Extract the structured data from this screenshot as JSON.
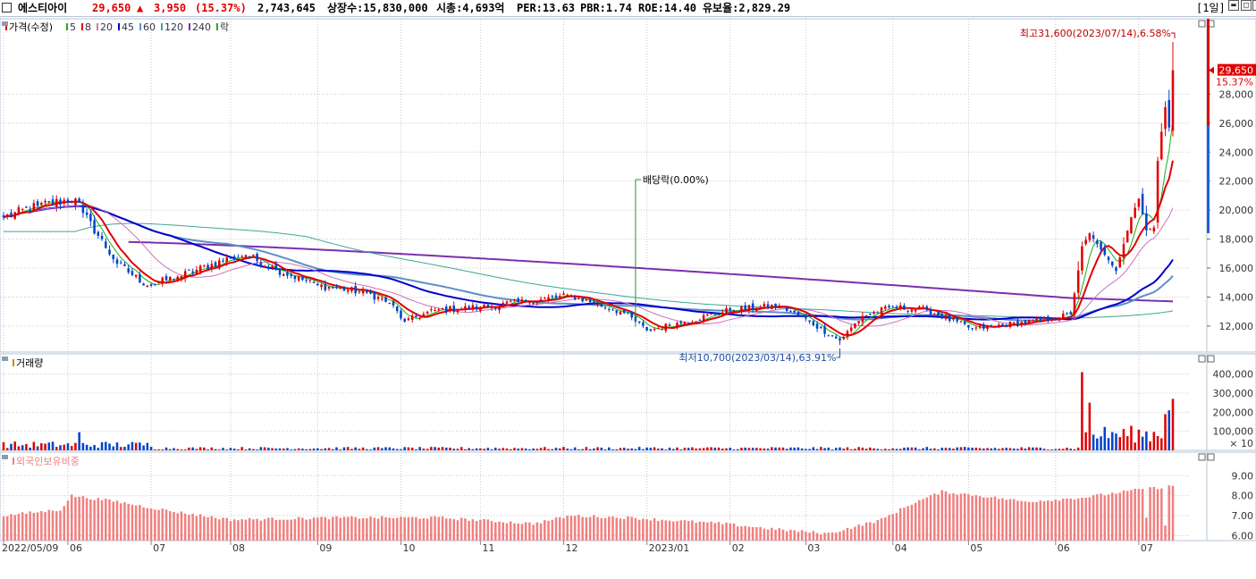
{
  "header": {
    "stock_name": "에스티아이",
    "price": "29,650",
    "change_arrow": "▲",
    "change": "3,950",
    "change_pct": "(15.37%)",
    "volume": "2,743,645",
    "listed_shares": "상장수:15,830,000",
    "market_cap": "시총:4,693억",
    "per": "PER:13.63",
    "pbr": "PBR:1.74",
    "roe": "ROE:14.40",
    "float": "유보율:2,829.29",
    "period": "[1일]",
    "minimize_icon": "minimize-icon",
    "maximize_icon": "maximize-icon",
    "close_icon": "close-icon"
  },
  "colors": {
    "up": "#e00000",
    "down": "#0044cc",
    "ma5": "#18b018",
    "ma8": "#e00000",
    "ma20": "#d070c0",
    "ma45": "#0000cc",
    "ma60": "#5d8fc8",
    "ma120": "#3fa59b",
    "ma240": "#7b2fb0",
    "foreign": "#f08080",
    "grid": "#c8c8c8",
    "axis_text": "#333333"
  },
  "price_panel": {
    "legend": [
      {
        "text": "가격(수정)",
        "color": "#e00000"
      },
      {
        "text": "5",
        "color": "#18b018"
      },
      {
        "text": "8",
        "color": "#e00000"
      },
      {
        "text": "20",
        "color": "#d070c0"
      },
      {
        "text": "45",
        "color": "#0000cc"
      },
      {
        "text": "60",
        "color": "#5d8fc8"
      },
      {
        "text": "120",
        "color": "#3fa59b"
      },
      {
        "text": "240",
        "color": "#7b2fb0"
      },
      {
        "text": "락",
        "color": "#18b018"
      }
    ],
    "y_ticks": [
      "12,000",
      "14,000",
      "16,000",
      "18,000",
      "20,000",
      "22,000",
      "24,000",
      "26,000",
      "28,000"
    ],
    "current_price_label": "29,650",
    "current_pct_label": "15.37%",
    "high_annotation": "최고31,600(2023/07/14),6.58%",
    "low_annotation": "최저10,700(2023/03/14),63.91%",
    "dividend_annotation": "배당락(0.00%)"
  },
  "volume_panel": {
    "legend": "거래량",
    "y_ticks": [
      "400,000",
      "300,000",
      "200,000",
      "100,000"
    ],
    "unit": "× 10"
  },
  "foreign_panel": {
    "legend": "외국인보유비중",
    "y_ticks": [
      "9.00",
      "8.00",
      "7.00",
      "6.00"
    ]
  },
  "x_axis": {
    "labels": [
      "2022/05/09",
      "06",
      "07",
      "08",
      "09",
      "10",
      "11",
      "12",
      "2023/01",
      "02",
      "03",
      "04",
      "05",
      "06",
      "07"
    ]
  },
  "chart_data": {
    "type": "candlestick",
    "x": [
      "2022-05-09",
      "2022-06",
      "2022-07",
      "2022-08",
      "2022-09",
      "2022-10",
      "2022-11",
      "2022-12",
      "2023-01",
      "2023-02",
      "2023-03",
      "2023-04",
      "2023-05",
      "2023-06",
      "2023-07"
    ],
    "close_anchors": [
      {
        "t": "2022-05-09",
        "v": 19500
      },
      {
        "t": "2022-05-20",
        "v": 20300
      },
      {
        "t": "2022-06-03",
        "v": 20800
      },
      {
        "t": "2022-06-07",
        "v": 19800
      },
      {
        "t": "2022-06-20",
        "v": 16300
      },
      {
        "t": "2022-06-30",
        "v": 14800
      },
      {
        "t": "2022-07-12",
        "v": 15400
      },
      {
        "t": "2022-08-01",
        "v": 16700
      },
      {
        "t": "2022-08-05",
        "v": 16900
      },
      {
        "t": "2022-08-17",
        "v": 15900
      },
      {
        "t": "2022-09-01",
        "v": 14800
      },
      {
        "t": "2022-09-20",
        "v": 14300
      },
      {
        "t": "2022-09-28",
        "v": 13600
      },
      {
        "t": "2022-10-04",
        "v": 12300
      },
      {
        "t": "2022-10-14",
        "v": 13100
      },
      {
        "t": "2022-11-01",
        "v": 13300
      },
      {
        "t": "2022-11-17",
        "v": 13700
      },
      {
        "t": "2022-12-05",
        "v": 14100
      },
      {
        "t": "2022-12-23",
        "v": 12900
      },
      {
        "t": "2023-01-02",
        "v": 11700
      },
      {
        "t": "2023-01-16",
        "v": 12300
      },
      {
        "t": "2023-02-01",
        "v": 13100
      },
      {
        "t": "2023-02-20",
        "v": 13400
      },
      {
        "t": "2023-03-02",
        "v": 12300
      },
      {
        "t": "2023-03-14",
        "v": 11000
      },
      {
        "t": "2023-03-22",
        "v": 12700
      },
      {
        "t": "2023-04-03",
        "v": 13300
      },
      {
        "t": "2023-04-14",
        "v": 13100
      },
      {
        "t": "2023-05-02",
        "v": 11800
      },
      {
        "t": "2023-05-10",
        "v": 12000
      },
      {
        "t": "2023-05-31",
        "v": 12500
      },
      {
        "t": "2023-06-07",
        "v": 12800
      },
      {
        "t": "2023-06-12",
        "v": 17500
      },
      {
        "t": "2023-06-14",
        "v": 18400
      },
      {
        "t": "2023-06-23",
        "v": 15800
      },
      {
        "t": "2023-06-29",
        "v": 19500
      },
      {
        "t": "2023-07-03",
        "v": 20800
      },
      {
        "t": "2023-07-05",
        "v": 18600
      },
      {
        "t": "2023-07-07",
        "v": 18800
      },
      {
        "t": "2023-07-10",
        "v": 23400
      },
      {
        "t": "2023-07-11",
        "v": 25400
      },
      {
        "t": "2023-07-12",
        "v": 27100
      },
      {
        "t": "2023-07-13",
        "v": 25700
      },
      {
        "t": "2023-07-14",
        "v": 29650
      }
    ],
    "high": {
      "value": 31600,
      "date": "2023/07/14"
    },
    "low": {
      "value": 10700,
      "date": "2023/03/14"
    },
    "moving_averages": [
      "5",
      "8",
      "20",
      "45",
      "60",
      "120",
      "240"
    ],
    "volume_peaks_x10": [
      {
        "t": "2023-06-12",
        "v": 410000
      },
      {
        "t": "2023-06-14",
        "v": 250000
      },
      {
        "t": "2023-07-12",
        "v": 190000
      },
      {
        "t": "2023-07-13",
        "v": 210000
      },
      {
        "t": "2023-07-14",
        "v": 270000
      }
    ],
    "foreign_ratio_range": [
      6.0,
      9.8
    ],
    "ylim_price": [
      10700,
      31600
    ]
  }
}
